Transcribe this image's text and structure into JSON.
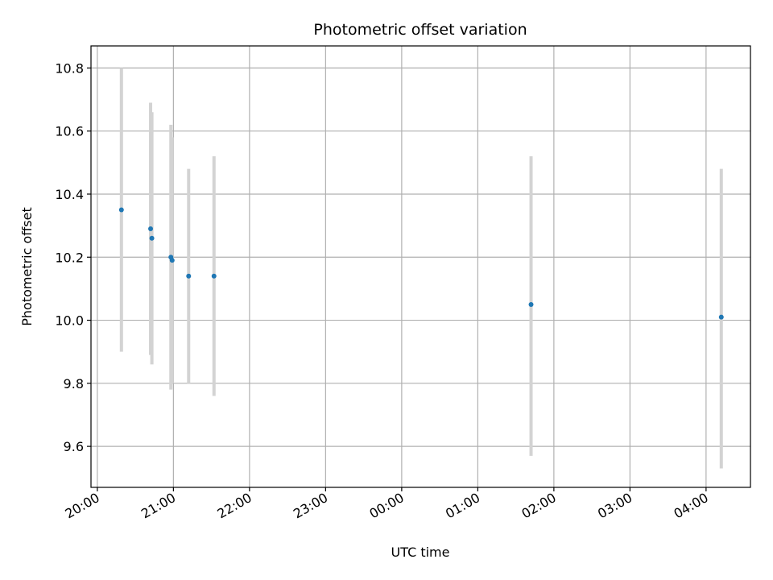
{
  "chart_data": {
    "type": "scatter",
    "title": "Photometric offset variation",
    "xlabel": "UTC time",
    "ylabel": "Photometric offset",
    "grid": true,
    "x_axis": {
      "kind": "time",
      "range": [
        "19:55",
        "04:35"
      ],
      "ticks": [
        "20:00",
        "21:00",
        "22:00",
        "23:00",
        "00:00",
        "01:00",
        "02:00",
        "03:00",
        "04:00"
      ]
    },
    "y_axis": {
      "range": [
        9.47,
        10.87
      ],
      "ticks": [
        9.6,
        9.8,
        10.0,
        10.2,
        10.4,
        10.6,
        10.8
      ]
    },
    "colors": {
      "points": "#1f77b4",
      "errorbars": "#d3d3d3",
      "grid": "#b0b0b0"
    },
    "points": [
      {
        "x": "20:19",
        "y": 10.35,
        "ylow": 9.9,
        "yhigh": 10.8
      },
      {
        "x": "20:42",
        "y": 10.29,
        "ylow": 9.89,
        "yhigh": 10.69
      },
      {
        "x": "20:43",
        "y": 10.26,
        "ylow": 9.86,
        "yhigh": 10.66
      },
      {
        "x": "20:58",
        "y": 10.2,
        "ylow": 9.78,
        "yhigh": 10.62
      },
      {
        "x": "20:59",
        "y": 10.19,
        "ylow": 9.8,
        "yhigh": 10.58
      },
      {
        "x": "21:12",
        "y": 10.14,
        "ylow": 9.8,
        "yhigh": 10.48
      },
      {
        "x": "21:32",
        "y": 10.14,
        "ylow": 9.76,
        "yhigh": 10.52
      },
      {
        "x": "01:42",
        "y": 10.05,
        "ylow": 9.57,
        "yhigh": 10.52
      },
      {
        "x": "04:12",
        "y": 10.01,
        "ylow": 9.53,
        "yhigh": 10.48
      }
    ]
  }
}
